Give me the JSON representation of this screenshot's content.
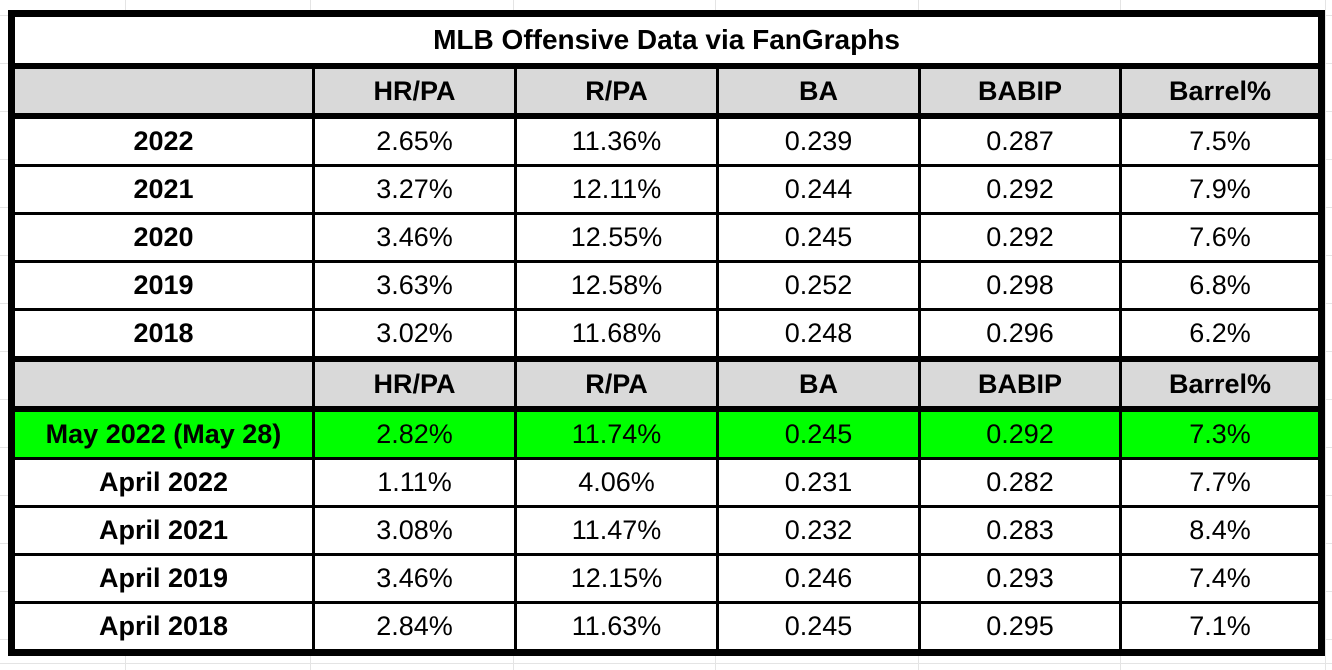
{
  "chart_data": {
    "type": "table",
    "title": "MLB Offensive Data via FanGraphs",
    "columns": [
      "",
      "HR/PA",
      "R/PA",
      "BA",
      "BABIP",
      "Barrel%"
    ],
    "season_section": {
      "rows": [
        {
          "label": "2022",
          "values": [
            "2.65%",
            "11.36%",
            "0.239",
            "0.287",
            "7.5%"
          ]
        },
        {
          "label": "2021",
          "values": [
            "3.27%",
            "12.11%",
            "0.244",
            "0.292",
            "7.9%"
          ]
        },
        {
          "label": "2020",
          "values": [
            "3.46%",
            "12.55%",
            "0.245",
            "0.292",
            "7.6%"
          ]
        },
        {
          "label": "2019",
          "values": [
            "3.63%",
            "12.58%",
            "0.252",
            "0.298",
            "6.8%"
          ]
        },
        {
          "label": "2018",
          "values": [
            "3.02%",
            "11.68%",
            "0.248",
            "0.296",
            "6.2%"
          ]
        }
      ]
    },
    "monthly_section": {
      "rows": [
        {
          "label": "May 2022 (May 28)",
          "values": [
            "2.82%",
            "11.74%",
            "0.245",
            "0.292",
            "7.3%"
          ],
          "highlight": true
        },
        {
          "label": "April 2022",
          "values": [
            "1.11%",
            "4.06%",
            "0.231",
            "0.282",
            "7.7%"
          ]
        },
        {
          "label": "April 2021",
          "values": [
            "3.08%",
            "11.47%",
            "0.232",
            "0.283",
            "8.4%"
          ]
        },
        {
          "label": "April 2019",
          "values": [
            "3.46%",
            "12.15%",
            "0.246",
            "0.293",
            "7.4%"
          ]
        },
        {
          "label": "April 2018",
          "values": [
            "2.84%",
            "11.63%",
            "0.245",
            "0.295",
            "7.1%"
          ]
        }
      ]
    }
  },
  "colors": {
    "header_bg": "#d9d9d9",
    "highlight_green": "#00ff00",
    "border_black": "#000000",
    "gridline_gray": "#e4e4e4"
  }
}
